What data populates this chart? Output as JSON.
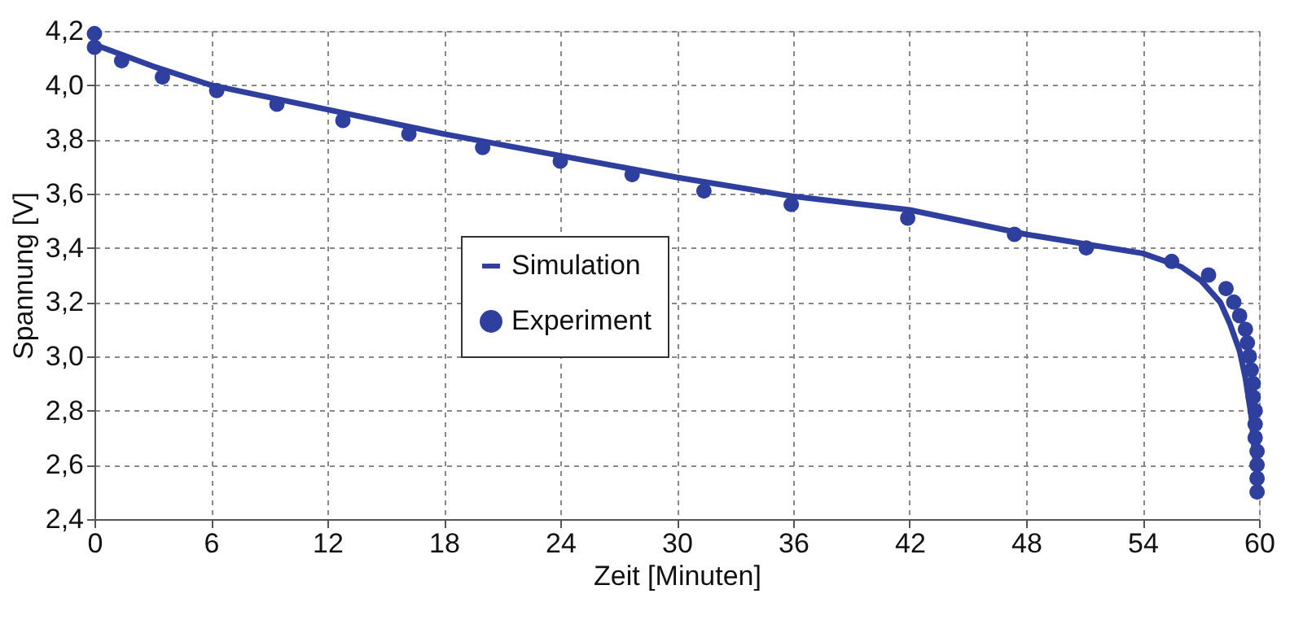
{
  "chart_data": {
    "type": "line",
    "xlabel": "Zeit [Minuten]",
    "ylabel": "Spannung [V]",
    "xlim": [
      0,
      60
    ],
    "xticks": [
      0,
      6,
      12,
      18,
      24,
      30,
      36,
      42,
      48,
      54,
      60
    ],
    "ylim": [
      2.4,
      4.2
    ],
    "yticks": [
      {
        "value": 2.4,
        "label": "2,4"
      },
      {
        "value": 2.6,
        "label": "2,6"
      },
      {
        "value": 2.8,
        "label": "2,8"
      },
      {
        "value": 3.0,
        "label": "3,0"
      },
      {
        "value": 3.2,
        "label": "3,2"
      },
      {
        "value": 3.4,
        "label": "3,4"
      },
      {
        "value": 3.6,
        "label": "3,6"
      },
      {
        "value": 3.8,
        "label": "3,8"
      },
      {
        "value": 4.0,
        "label": "4,0"
      },
      {
        "value": 4.2,
        "label": "4,2"
      }
    ],
    "grid": true,
    "legend": "left",
    "series": [
      {
        "name": "Simulation",
        "type": "line",
        "color": "#2e3f9e",
        "x": [
          0,
          3,
          6,
          12,
          18,
          24,
          30,
          36,
          42,
          48,
          54,
          56,
          57,
          58,
          58.5,
          59,
          59.3,
          59.6,
          59.8,
          60
        ],
        "values": [
          4.15,
          4.07,
          4.0,
          3.91,
          3.82,
          3.74,
          3.66,
          3.59,
          3.54,
          3.45,
          3.38,
          3.33,
          3.28,
          3.2,
          3.12,
          3.02,
          2.92,
          2.78,
          2.62,
          2.5
        ]
      },
      {
        "name": "Experiment",
        "type": "scatter",
        "marker": "circle",
        "color": "#2e3f9e",
        "x": [
          0,
          0,
          1.4,
          3.5,
          6.3,
          9.4,
          12.8,
          16.2,
          20.0,
          24.0,
          27.7,
          31.4,
          35.9,
          41.9,
          47.4,
          51.1,
          55.5,
          57.4,
          58.3,
          58.7,
          59.0,
          59.3,
          59.4,
          59.5,
          59.6,
          59.7,
          59.7,
          59.8,
          59.8,
          59.8,
          59.9,
          59.9,
          59.9,
          59.9
        ],
        "values": [
          4.19,
          4.14,
          4.09,
          4.03,
          3.98,
          3.93,
          3.87,
          3.82,
          3.77,
          3.72,
          3.67,
          3.61,
          3.56,
          3.51,
          3.45,
          3.4,
          3.35,
          3.3,
          3.25,
          3.2,
          3.15,
          3.1,
          3.05,
          3.0,
          2.95,
          2.9,
          2.85,
          2.8,
          2.75,
          2.7,
          2.65,
          2.6,
          2.55,
          2.5
        ]
      }
    ]
  }
}
